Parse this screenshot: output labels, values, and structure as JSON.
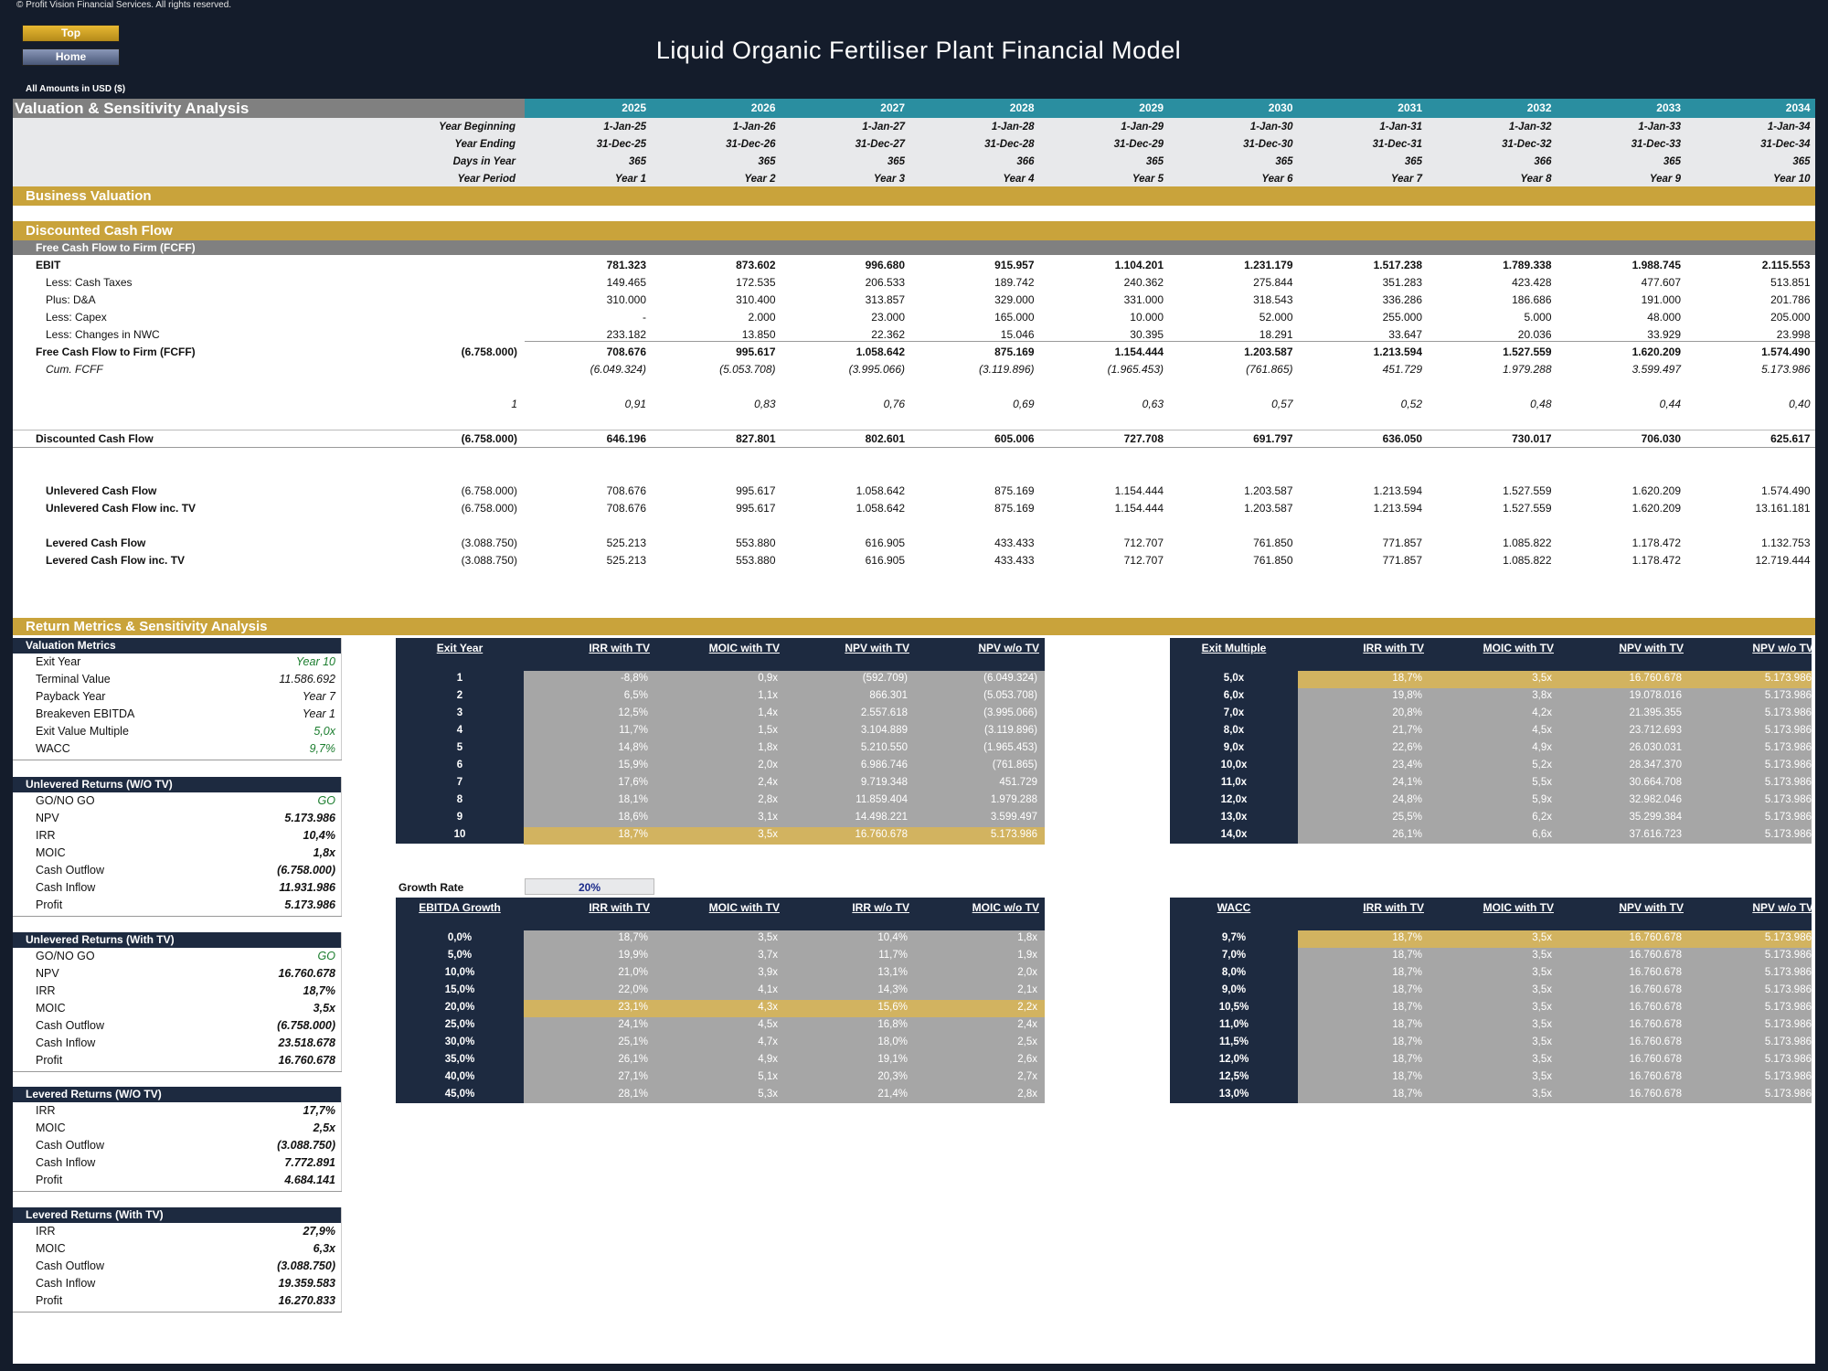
{
  "copyright": "© Profit Vision Financial Services. All rights reserved.",
  "nav": {
    "top": "Top",
    "home": "Home"
  },
  "title": "Liquid Organic Fertiliser Plant Financial Model",
  "amounts_label": "All Amounts in  USD ($)",
  "colors": {
    "navy": "#1d2a40",
    "gold": "#c9a33b",
    "teal": "#2a8ea0",
    "grey": "#808080",
    "cellgrey": "#a6a6a6",
    "highlight": "#d2b360"
  },
  "years": [
    "2025",
    "2026",
    "2027",
    "2028",
    "2029",
    "2030",
    "2031",
    "2032",
    "2033",
    "2034"
  ],
  "section_title": "Valuation & Sensitivity Analysis",
  "timeline": [
    {
      "label": "Year Beginning",
      "values": [
        "1-Jan-25",
        "1-Jan-26",
        "1-Jan-27",
        "1-Jan-28",
        "1-Jan-29",
        "1-Jan-30",
        "1-Jan-31",
        "1-Jan-32",
        "1-Jan-33",
        "1-Jan-34"
      ]
    },
    {
      "label": "Year Ending",
      "values": [
        "31-Dec-25",
        "31-Dec-26",
        "31-Dec-27",
        "31-Dec-28",
        "31-Dec-29",
        "31-Dec-30",
        "31-Dec-31",
        "31-Dec-32",
        "31-Dec-33",
        "31-Dec-34"
      ]
    },
    {
      "label": "Days in Year",
      "values": [
        "365",
        "365",
        "365",
        "366",
        "365",
        "365",
        "365",
        "366",
        "365",
        "365"
      ]
    },
    {
      "label": "Year Period",
      "values": [
        "Year 1",
        "Year 2",
        "Year 3",
        "Year 4",
        "Year 5",
        "Year 6",
        "Year 7",
        "Year 8",
        "Year 9",
        "Year 10"
      ]
    }
  ],
  "business_valuation": "Business Valuation",
  "dcf_title": "Discounted Cash Flow",
  "fcff_header": "Free Cash Flow to Firm (FCFF)",
  "dcf_rows": [
    {
      "label": "EBIT",
      "base": "",
      "values": [
        "781.323",
        "873.602",
        "996.680",
        "915.957",
        "1.104.201",
        "1.231.179",
        "1.517.238",
        "1.789.338",
        "1.988.745",
        "2.115.553"
      ],
      "bold": true,
      "italic": false,
      "indent": false
    },
    {
      "label": "Less: Cash Taxes",
      "base": "",
      "values": [
        "149.465",
        "172.535",
        "206.533",
        "189.742",
        "240.362",
        "275.844",
        "351.283",
        "423.428",
        "477.607",
        "513.851"
      ],
      "bold": false,
      "italic": false,
      "indent": true
    },
    {
      "label": "Plus: D&A",
      "base": "",
      "values": [
        "310.000",
        "310.400",
        "313.857",
        "329.000",
        "331.000",
        "318.543",
        "336.286",
        "186.686",
        "191.000",
        "201.786"
      ],
      "bold": false,
      "italic": false,
      "indent": true
    },
    {
      "label": "Less: Capex",
      "base": "",
      "values": [
        "-",
        "2.000",
        "23.000",
        "165.000",
        "10.000",
        "52.000",
        "255.000",
        "5.000",
        "48.000",
        "205.000"
      ],
      "bold": false,
      "italic": false,
      "indent": true
    },
    {
      "label": "Less: Changes in NWC",
      "base": "",
      "values": [
        "233.182",
        "13.850",
        "22.362",
        "15.046",
        "30.395",
        "18.291",
        "33.647",
        "20.036",
        "33.929",
        "23.998"
      ],
      "bold": false,
      "italic": false,
      "indent": true
    },
    {
      "label": "Free Cash Flow to Firm (FCFF)",
      "base": "(6.758.000)",
      "values": [
        "708.676",
        "995.617",
        "1.058.642",
        "875.169",
        "1.154.444",
        "1.203.587",
        "1.213.594",
        "1.527.559",
        "1.620.209",
        "1.574.490"
      ],
      "bold": true,
      "italic": false,
      "indent": false
    },
    {
      "label": "Cum. FCFF",
      "base": "",
      "values": [
        "(6.049.324)",
        "(5.053.708)",
        "(3.995.066)",
        "(3.119.896)",
        "(1.965.453)",
        "(761.865)",
        "451.729",
        "1.979.288",
        "3.599.497",
        "5.173.986"
      ],
      "bold": false,
      "italic": true,
      "indent": true
    }
  ],
  "discount_factors": {
    "base": "1",
    "values": [
      "0,91",
      "0,83",
      "0,76",
      "0,69",
      "0,63",
      "0,57",
      "0,52",
      "0,48",
      "0,44",
      "0,40"
    ]
  },
  "discounted_cf": {
    "label": "Discounted Cash Flow",
    "base": "(6.758.000)",
    "values": [
      "646.196",
      "827.801",
      "802.601",
      "605.006",
      "727.708",
      "691.797",
      "636.050",
      "730.017",
      "706.030",
      "625.617"
    ]
  },
  "cash_flows": [
    {
      "label": "Unlevered Cash Flow",
      "base": "(6.758.000)",
      "values": [
        "708.676",
        "995.617",
        "1.058.642",
        "875.169",
        "1.154.444",
        "1.203.587",
        "1.213.594",
        "1.527.559",
        "1.620.209",
        "1.574.490"
      ]
    },
    {
      "label": "Unlevered Cash Flow inc. TV",
      "base": "(6.758.000)",
      "values": [
        "708.676",
        "995.617",
        "1.058.642",
        "875.169",
        "1.154.444",
        "1.203.587",
        "1.213.594",
        "1.527.559",
        "1.620.209",
        "13.161.181"
      ]
    },
    {
      "label": "Levered Cash Flow",
      "base": "(3.088.750)",
      "values": [
        "525.213",
        "553.880",
        "616.905",
        "433.433",
        "712.707",
        "761.850",
        "771.857",
        "1.085.822",
        "1.178.472",
        "1.132.753"
      ]
    },
    {
      "label": "Levered Cash Flow inc. TV",
      "base": "(3.088.750)",
      "values": [
        "525.213",
        "553.880",
        "616.905",
        "433.433",
        "712.707",
        "761.850",
        "771.857",
        "1.085.822",
        "1.178.472",
        "12.719.444"
      ]
    }
  ],
  "return_title": "Return Metrics & Sensitivity Analysis",
  "metric_blocks": [
    {
      "title": "Valuation Metrics",
      "items": [
        [
          "Exit Year",
          "Year 10",
          "green"
        ],
        [
          "Terminal Value",
          "11.586.692",
          ""
        ],
        [
          "Payback Year",
          "Year 7",
          ""
        ],
        [
          "Breakeven EBITDA",
          "Year 1",
          ""
        ],
        [
          "Exit Value Multiple",
          "5,0x",
          "green"
        ],
        [
          "WACC",
          "9,7%",
          "green"
        ]
      ]
    },
    {
      "title": "Unlevered Returns (W/O TV)",
      "items": [
        [
          "GO/NO GO",
          "GO",
          "green"
        ],
        [
          "NPV",
          "5.173.986",
          ""
        ],
        [
          "IRR",
          "10,4%",
          ""
        ],
        [
          "MOIC",
          "1,8x",
          ""
        ],
        [
          "Cash Outflow",
          "(6.758.000)",
          ""
        ],
        [
          "Cash Inflow",
          "11.931.986",
          ""
        ],
        [
          "Profit",
          "5.173.986",
          ""
        ]
      ]
    },
    {
      "title": "Unlevered Returns (With TV)",
      "items": [
        [
          "GO/NO GO",
          "GO",
          "green"
        ],
        [
          "NPV",
          "16.760.678",
          ""
        ],
        [
          "IRR",
          "18,7%",
          ""
        ],
        [
          "MOIC",
          "3,5x",
          ""
        ],
        [
          "Cash Outflow",
          "(6.758.000)",
          ""
        ],
        [
          "Cash Inflow",
          "23.518.678",
          ""
        ],
        [
          "Profit",
          "16.760.678",
          ""
        ]
      ]
    },
    {
      "title": "Levered Returns (W/O TV)",
      "items": [
        [
          "IRR",
          "17,7%",
          ""
        ],
        [
          "MOIC",
          "2,5x",
          ""
        ],
        [
          "Cash Outflow",
          "(3.088.750)",
          ""
        ],
        [
          "Cash Inflow",
          "7.772.891",
          ""
        ],
        [
          "Profit",
          "4.684.141",
          ""
        ]
      ]
    },
    {
      "title": "Levered Returns (With TV)",
      "items": [
        [
          "IRR",
          "27,9%",
          ""
        ],
        [
          "MOIC",
          "6,3x",
          ""
        ],
        [
          "Cash Outflow",
          "(3.088.750)",
          ""
        ],
        [
          "Cash Inflow",
          "19.359.583",
          ""
        ],
        [
          "Profit",
          "16.270.833",
          ""
        ]
      ]
    }
  ],
  "growth_rate": {
    "label": "Growth Rate",
    "value": "20%"
  },
  "sens_tables": [
    {
      "headers": [
        "Exit Year",
        "IRR with TV",
        "MOIC with TV",
        "NPV with TV",
        "NPV w/o TV"
      ],
      "highlight": 9,
      "rows": [
        [
          "1",
          "-8,8%",
          "0,9x",
          "(592.709)",
          "(6.049.324)"
        ],
        [
          "2",
          "6,5%",
          "1,1x",
          "866.301",
          "(5.053.708)"
        ],
        [
          "3",
          "12,5%",
          "1,4x",
          "2.557.618",
          "(3.995.066)"
        ],
        [
          "4",
          "11,7%",
          "1,5x",
          "3.104.889",
          "(3.119.896)"
        ],
        [
          "5",
          "14,8%",
          "1,8x",
          "5.210.550",
          "(1.965.453)"
        ],
        [
          "6",
          "15,9%",
          "2,0x",
          "6.986.746",
          "(761.865)"
        ],
        [
          "7",
          "17,6%",
          "2,4x",
          "9.719.348",
          "451.729"
        ],
        [
          "8",
          "18,1%",
          "2,8x",
          "11.859.404",
          "1.979.288"
        ],
        [
          "9",
          "18,6%",
          "3,1x",
          "14.498.221",
          "3.599.497"
        ],
        [
          "10",
          "18,7%",
          "3,5x",
          "16.760.678",
          "5.173.986"
        ]
      ]
    },
    {
      "headers": [
        "Exit Multiple",
        "IRR with TV",
        "MOIC with TV",
        "NPV with TV",
        "NPV w/o TV"
      ],
      "highlight": 0,
      "rows": [
        [
          "5,0x",
          "18,7%",
          "3,5x",
          "16.760.678",
          "5.173.986"
        ],
        [
          "6,0x",
          "19,8%",
          "3,8x",
          "19.078.016",
          "5.173.986"
        ],
        [
          "7,0x",
          "20,8%",
          "4,2x",
          "21.395.355",
          "5.173.986"
        ],
        [
          "8,0x",
          "21,7%",
          "4,5x",
          "23.712.693",
          "5.173.986"
        ],
        [
          "9,0x",
          "22,6%",
          "4,9x",
          "26.030.031",
          "5.173.986"
        ],
        [
          "10,0x",
          "23,4%",
          "5,2x",
          "28.347.370",
          "5.173.986"
        ],
        [
          "11,0x",
          "24,1%",
          "5,5x",
          "30.664.708",
          "5.173.986"
        ],
        [
          "12,0x",
          "24,8%",
          "5,9x",
          "32.982.046",
          "5.173.986"
        ],
        [
          "13,0x",
          "25,5%",
          "6,2x",
          "35.299.384",
          "5.173.986"
        ],
        [
          "14,0x",
          "26,1%",
          "6,6x",
          "37.616.723",
          "5.173.986"
        ]
      ]
    },
    {
      "headers": [
        "EBITDA Growth",
        "IRR with TV",
        "MOIC with TV",
        "IRR w/o TV",
        "MOIC w/o TV"
      ],
      "highlight": 4,
      "rows": [
        [
          "0,0%",
          "18,7%",
          "3,5x",
          "10,4%",
          "1,8x"
        ],
        [
          "5,0%",
          "19,9%",
          "3,7x",
          "11,7%",
          "1,9x"
        ],
        [
          "10,0%",
          "21,0%",
          "3,9x",
          "13,1%",
          "2,0x"
        ],
        [
          "15,0%",
          "22,0%",
          "4,1x",
          "14,3%",
          "2,1x"
        ],
        [
          "20,0%",
          "23,1%",
          "4,3x",
          "15,6%",
          "2,2x"
        ],
        [
          "25,0%",
          "24,1%",
          "4,5x",
          "16,8%",
          "2,4x"
        ],
        [
          "30,0%",
          "25,1%",
          "4,7x",
          "18,0%",
          "2,5x"
        ],
        [
          "35,0%",
          "26,1%",
          "4,9x",
          "19,1%",
          "2,6x"
        ],
        [
          "40,0%",
          "27,1%",
          "5,1x",
          "20,3%",
          "2,7x"
        ],
        [
          "45,0%",
          "28,1%",
          "5,3x",
          "21,4%",
          "2,8x"
        ]
      ]
    },
    {
      "headers": [
        "WACC",
        "IRR with TV",
        "MOIC with TV",
        "NPV with TV",
        "NPV w/o TV"
      ],
      "highlight": 0,
      "rows": [
        [
          "9,7%",
          "18,7%",
          "3,5x",
          "16.760.678",
          "5.173.986"
        ],
        [
          "7,0%",
          "18,7%",
          "3,5x",
          "16.760.678",
          "5.173.986"
        ],
        [
          "8,0%",
          "18,7%",
          "3,5x",
          "16.760.678",
          "5.173.986"
        ],
        [
          "9,0%",
          "18,7%",
          "3,5x",
          "16.760.678",
          "5.173.986"
        ],
        [
          "10,5%",
          "18,7%",
          "3,5x",
          "16.760.678",
          "5.173.986"
        ],
        [
          "11,0%",
          "18,7%",
          "3,5x",
          "16.760.678",
          "5.173.986"
        ],
        [
          "11,5%",
          "18,7%",
          "3,5x",
          "16.760.678",
          "5.173.986"
        ],
        [
          "12,0%",
          "18,7%",
          "3,5x",
          "16.760.678",
          "5.173.986"
        ],
        [
          "12,5%",
          "18,7%",
          "3,5x",
          "16.760.678",
          "5.173.986"
        ],
        [
          "13,0%",
          "18,7%",
          "3,5x",
          "16.760.678",
          "5.173.986"
        ]
      ]
    }
  ]
}
